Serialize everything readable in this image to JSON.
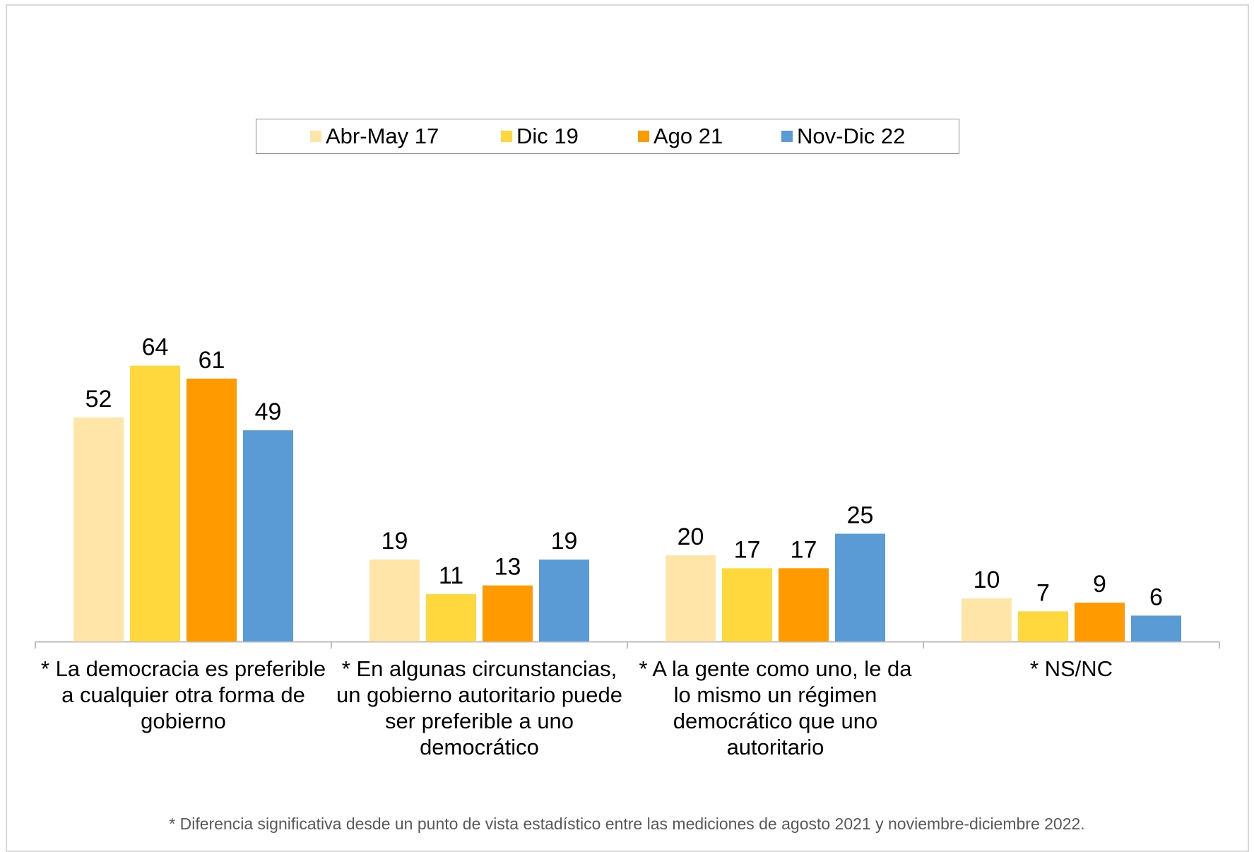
{
  "chart_data": {
    "type": "bar",
    "categories": [
      [
        "* La democracia es preferible",
        "a cualquier otra forma de",
        "gobierno"
      ],
      [
        "* En algunas circunstancias,",
        "un gobierno autoritario puede",
        "ser preferible a uno",
        "democrático"
      ],
      [
        "* A la gente como uno, le da",
        "lo mismo un régimen",
        "democrático que uno",
        "autoritario"
      ],
      [
        "* NS/NC"
      ]
    ],
    "series": [
      {
        "name": "Abr-May 17",
        "color": "#FFE6A8",
        "values": [
          52,
          19,
          20,
          10
        ]
      },
      {
        "name": "Dic 19",
        "color": "#FFD83D",
        "values": [
          64,
          11,
          17,
          7
        ]
      },
      {
        "name": "Ago 21",
        "color": "#FF9A00",
        "values": [
          61,
          13,
          17,
          9
        ]
      },
      {
        "name": "Nov-Dic 22",
        "color": "#5B9BD5",
        "values": [
          49,
          19,
          25,
          6
        ]
      }
    ],
    "ylim": [
      0,
      100
    ],
    "grid": false,
    "legend": "top-center",
    "footnote": "* Diferencia significativa desde un punto de vista estadístico entre las mediciones de agosto 2021 y noviembre-diciembre 2022."
  }
}
